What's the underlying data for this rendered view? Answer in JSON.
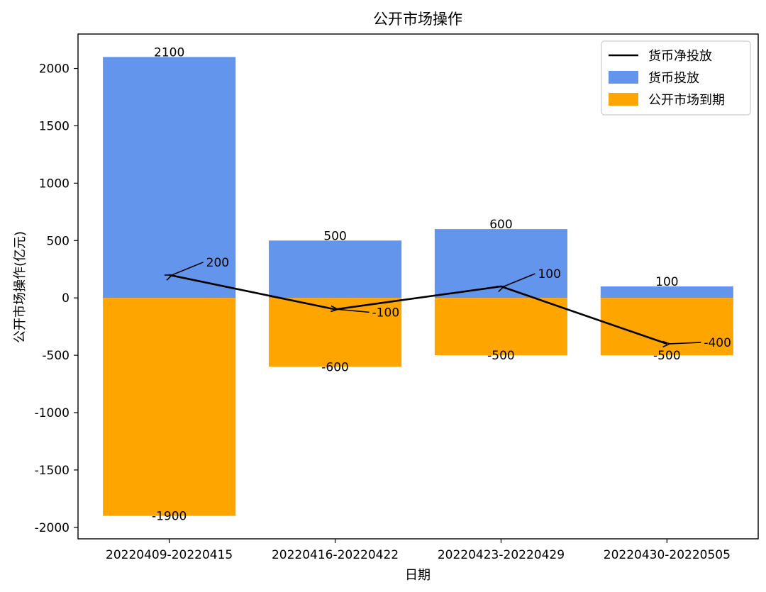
{
  "chart_data": {
    "type": "bar",
    "title": "公开市场操作",
    "xlabel": "日期",
    "ylabel": "公开市场操作(亿元)",
    "ylim": [
      -2100,
      2300
    ],
    "yticks": [
      -2000,
      -1500,
      -1000,
      -500,
      0,
      500,
      1000,
      1500,
      2000
    ],
    "ytick_labels": [
      "-2000",
      "-1500",
      "-1000",
      "-500",
      "0",
      "500",
      "1000",
      "1500",
      "2000"
    ],
    "categories": [
      "20220409-20220415",
      "20220416-20220422",
      "20220423-20220429",
      "20220430-20220505"
    ],
    "series": [
      {
        "name": "货币投放",
        "kind": "bar",
        "color": "#6495ED",
        "values": [
          2100,
          500,
          600,
          100
        ],
        "labels": [
          "2100",
          "500",
          "600",
          "100"
        ]
      },
      {
        "name": "公开市场到期",
        "kind": "bar",
        "color": "#FFA500",
        "values": [
          -1900,
          -600,
          -500,
          -500
        ],
        "labels": [
          "-1900",
          "-600",
          "-500",
          "-500"
        ]
      },
      {
        "name": "货币净投放",
        "kind": "line",
        "color": "#000000",
        "values": [
          200,
          -100,
          100,
          -400
        ],
        "labels": [
          "200",
          "-100",
          "100",
          "-400"
        ]
      }
    ],
    "legend": {
      "position": "top-right",
      "items": [
        "货币净投放",
        "货币投放",
        "公开市场到期"
      ]
    },
    "grid": false
  }
}
